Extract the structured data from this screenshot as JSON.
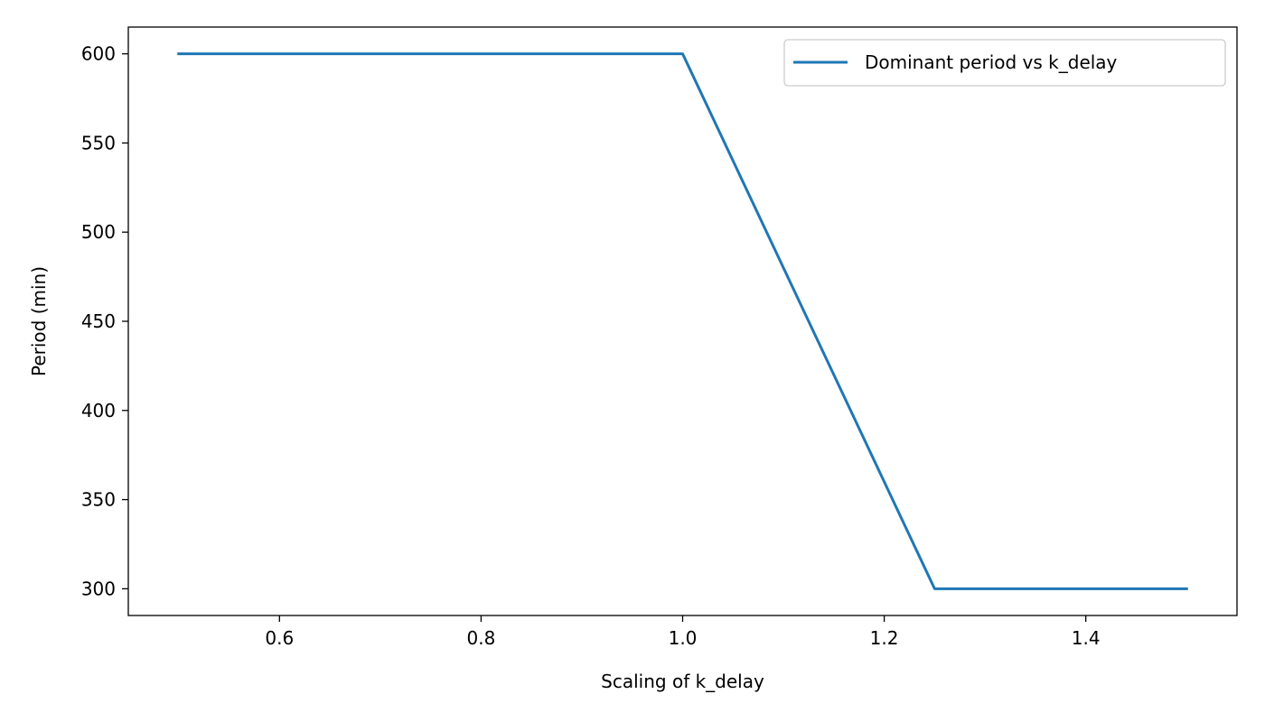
{
  "chart_data": {
    "type": "line",
    "title": "",
    "xlabel": "Scaling of k_delay",
    "ylabel": "Period (min)",
    "xlim": [
      0.45,
      1.55
    ],
    "ylim": [
      285,
      615
    ],
    "xticks": [
      0.6,
      0.8,
      1.0,
      1.2,
      1.4
    ],
    "xtick_labels": [
      "0.6",
      "0.8",
      "1.0",
      "1.2",
      "1.4"
    ],
    "yticks": [
      300,
      350,
      400,
      450,
      500,
      550,
      600
    ],
    "ytick_labels": [
      "300",
      "350",
      "400",
      "450",
      "500",
      "550",
      "600"
    ],
    "grid": false,
    "legend_position": "top-right",
    "series": [
      {
        "name": "Dominant period vs k_delay",
        "color": "#1f77b4",
        "x": [
          0.5,
          1.0,
          1.25,
          1.5
        ],
        "y": [
          600,
          600,
          300,
          300
        ]
      }
    ]
  }
}
